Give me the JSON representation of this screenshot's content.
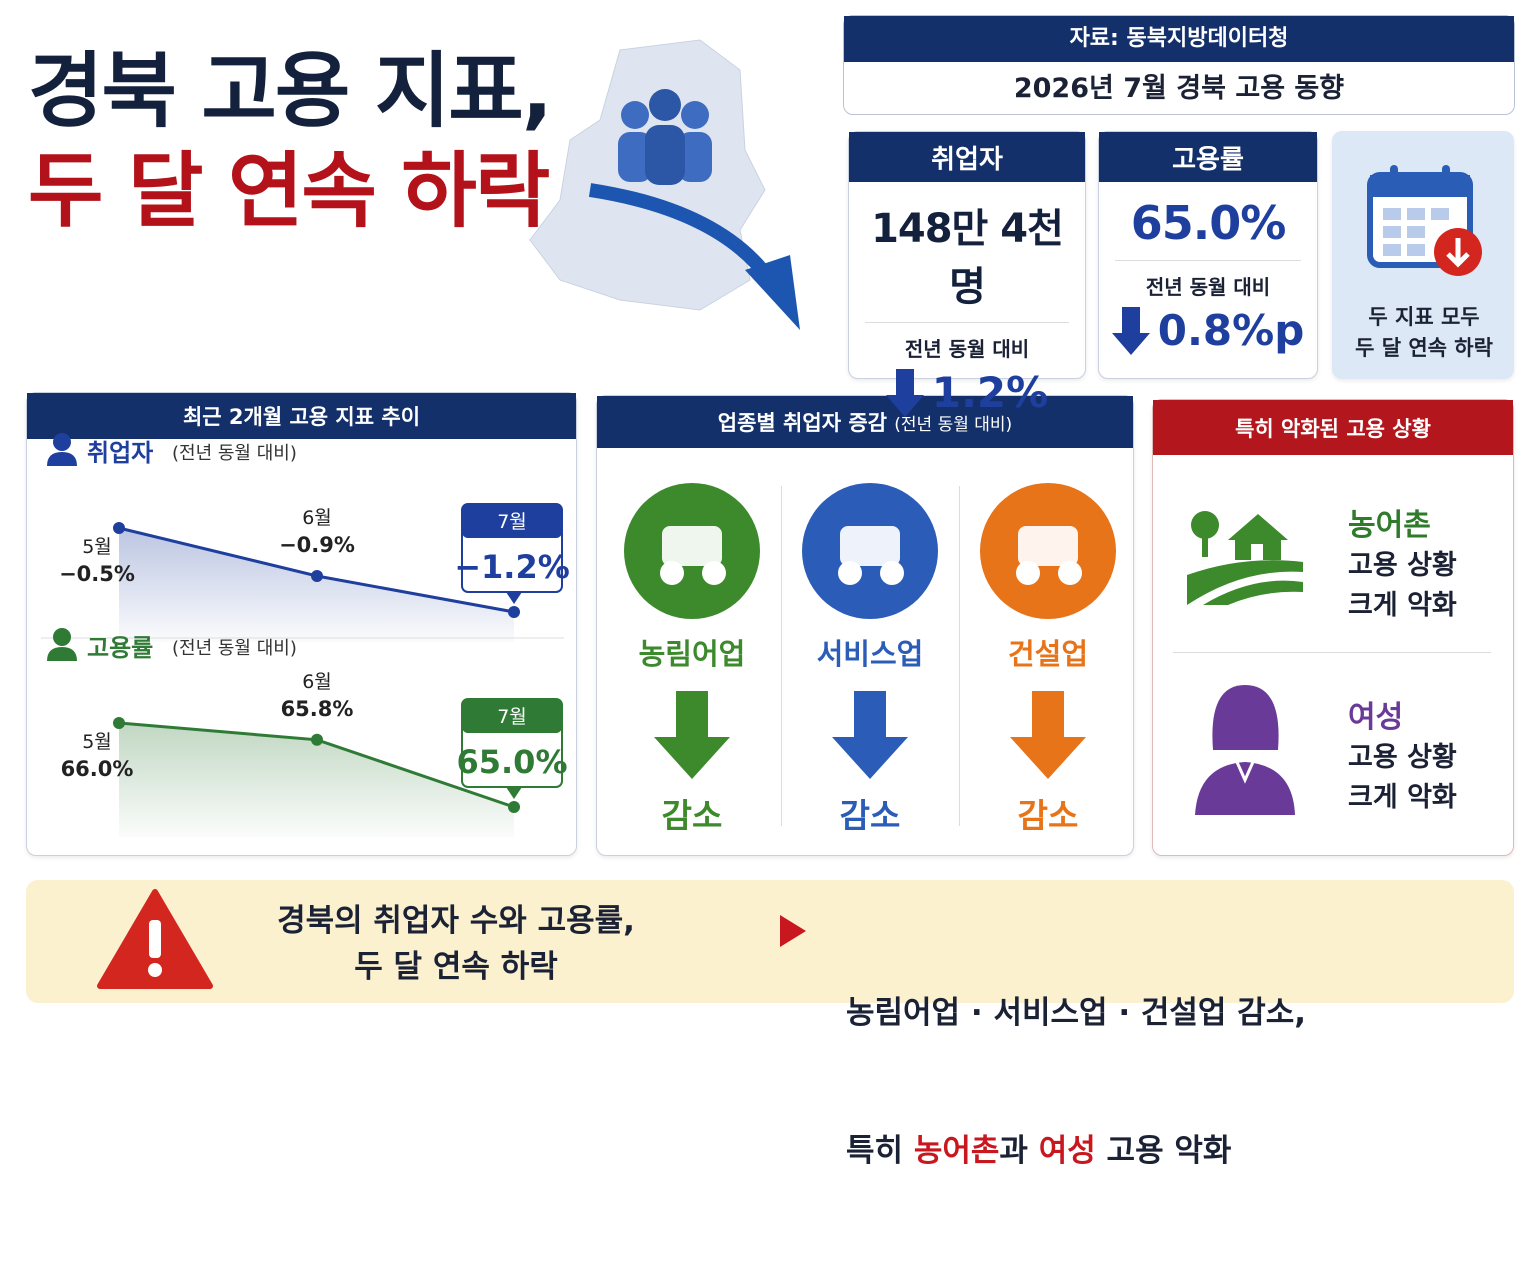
{
  "header": {
    "title_line1": "경북 고용 지표,",
    "title_line2": "두 달 연속 하락"
  },
  "source": {
    "label": "자료: 동북지방데이터청",
    "subtitle": "2026년 7월 경북 고용 동향"
  },
  "kpis": [
    {
      "title": "취업자",
      "value": "148만 4천 명",
      "compare": "전년 동월 대비",
      "change": "1.2%"
    },
    {
      "title": "고용률",
      "value": "65.0%",
      "compare": "전년 동월 대비",
      "change": "0.8%p"
    }
  ],
  "note": [
    "두 지표 모두",
    "두 달 연속 하락"
  ],
  "trend": {
    "title": "최근 2개월 고용 지표 추이",
    "charts": [
      {
        "name": "취업자",
        "sub": "(전년 동월 대비)",
        "color": "#1f3f9e",
        "points": [
          {
            "month": "5월",
            "value": -0.5,
            "label": "−0.5%"
          },
          {
            "month": "6월",
            "value": -0.9,
            "label": "−0.9%"
          },
          {
            "month": "7월",
            "value": -1.2,
            "label": "−1.2%"
          }
        ]
      },
      {
        "name": "고용률",
        "sub": "(전년 동월 대비)",
        "color": "#2f7a35",
        "points": [
          {
            "month": "5월",
            "value": 66.0,
            "label": "66.0%"
          },
          {
            "month": "6월",
            "value": 65.8,
            "label": "65.8%"
          },
          {
            "month": "7월",
            "value": 65.0,
            "label": "65.0%"
          }
        ]
      }
    ]
  },
  "industries": {
    "title": "업종별 취업자 증감",
    "title_note": "(전년 동월 대비)",
    "items": [
      {
        "name": "농림어업",
        "status": "감소",
        "color": "#3c8a2c"
      },
      {
        "name": "서비스업",
        "status": "감소",
        "color": "#2b5db8"
      },
      {
        "name": "건설업",
        "status": "감소",
        "color": "#e8741a"
      }
    ]
  },
  "worse": {
    "title": "특히 악화된 고용 상황",
    "items": [
      {
        "name": "농어촌",
        "desc": [
          "고용 상황",
          "크게 악화"
        ],
        "color": "#2f7a2b"
      },
      {
        "name": "여성",
        "desc": [
          "고용 상황",
          "크게 악화"
        ],
        "color": "#6a3a98"
      }
    ]
  },
  "summary": {
    "left": [
      "경북의 취업자 수와 고용률,",
      "두 달 연속 하락"
    ],
    "right_line1": "농림어업 · 서비스업 · 건설업 감소,",
    "right_line2": [
      "특히 ",
      "농어촌",
      "과 ",
      "여성",
      " 고용 악화"
    ]
  }
}
